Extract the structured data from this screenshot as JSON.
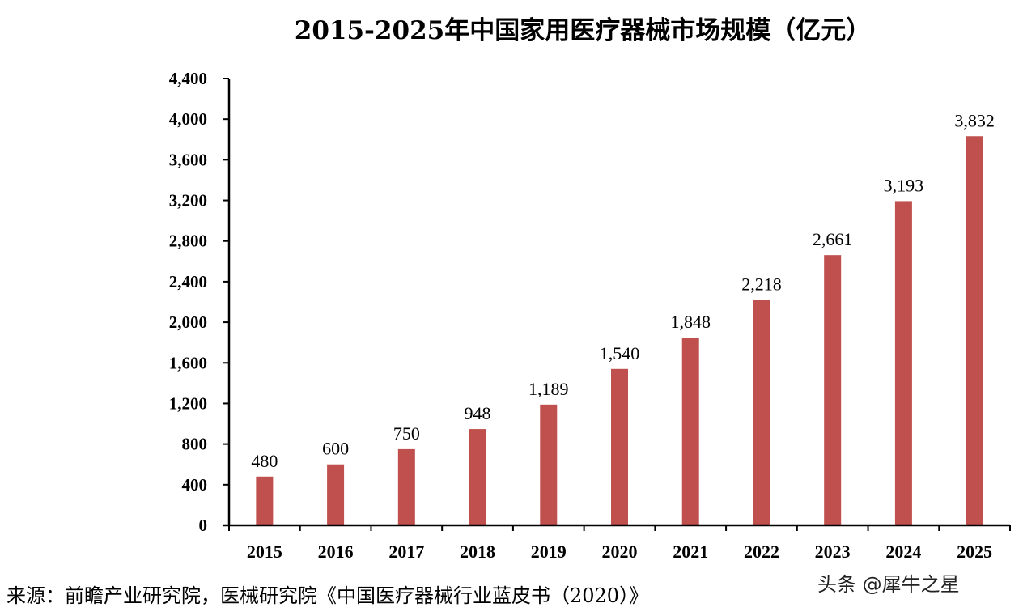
{
  "chart_data": {
    "type": "bar",
    "title": "2015-2025年中国家用医疗器械市场规模（亿元）",
    "categories": [
      "2015",
      "2016",
      "2017",
      "2018",
      "2019",
      "2020",
      "2021",
      "2022",
      "2023",
      "2024",
      "2025"
    ],
    "values": [
      480,
      600,
      750,
      948,
      1189,
      1540,
      1848,
      2218,
      2661,
      3193,
      3832
    ],
    "data_labels": [
      "480",
      "600",
      "750",
      "948",
      "1,189",
      "1,540",
      "1,848",
      "2,218",
      "2,661",
      "3,193",
      "3,832"
    ],
    "ylim": [
      0,
      4400
    ],
    "yticks": [
      0,
      400,
      800,
      1200,
      1600,
      2000,
      2400,
      2800,
      3200,
      3600,
      4000,
      4400
    ],
    "ytick_labels": [
      "0",
      "400",
      "800",
      "1,200",
      "1,600",
      "2,000",
      "2,400",
      "2,800",
      "3,200",
      "3,600",
      "4,000",
      "4,400"
    ],
    "xlabel": "",
    "ylabel": "",
    "grid": false,
    "legend": "none",
    "bar_color": "#c0504d"
  },
  "source": "来源：前瞻产业研究院，医械研究院《中国医疗器械行业蓝皮书（2020）》",
  "watermark": "头条 @犀牛之星"
}
